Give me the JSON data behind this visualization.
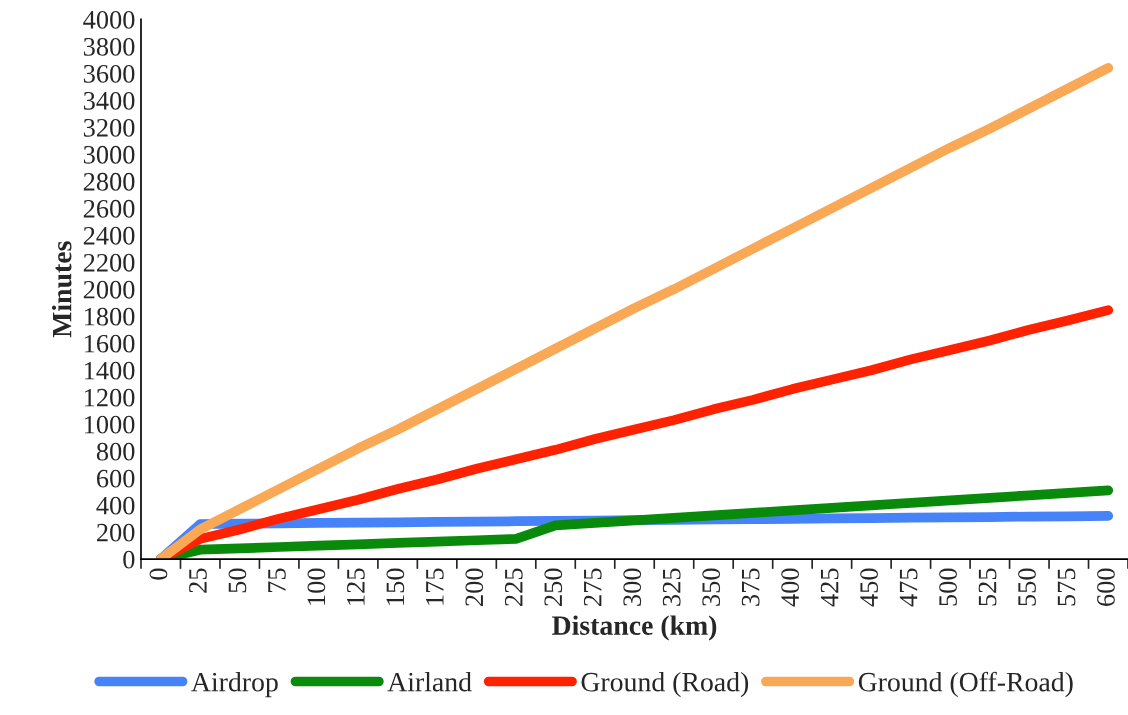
{
  "chart_data": {
    "type": "line",
    "xlabel": "Distance (km)",
    "ylabel": "Minutes",
    "categories": [
      "0",
      "25",
      "50",
      "75",
      "100",
      "125",
      "150",
      "175",
      "200",
      "225",
      "250",
      "275",
      "300",
      "325",
      "350",
      "375",
      "400",
      "425",
      "450",
      "475",
      "500",
      "525",
      "550",
      "575",
      "600"
    ],
    "series": [
      {
        "name": "Airdrop",
        "color": "#4682f8",
        "values": [
          0,
          260,
          263,
          265,
          268,
          270,
          273,
          276,
          278,
          281,
          283,
          286,
          289,
          291,
          294,
          296,
          299,
          302,
          304,
          307,
          309,
          312,
          315,
          317,
          320
        ]
      },
      {
        "name": "Airland",
        "color": "#0a8a0a",
        "values": [
          0,
          70,
          80,
          90,
          100,
          110,
          120,
          130,
          140,
          150,
          250,
          269,
          287,
          306,
          324,
          343,
          361,
          380,
          399,
          417,
          436,
          454,
          473,
          491,
          510
        ]
      },
      {
        "name": "Ground (Road)",
        "color": "#ff2200",
        "values": [
          0,
          150,
          220,
          300,
          370,
          440,
          520,
          590,
          670,
          740,
          810,
          890,
          960,
          1030,
          1110,
          1180,
          1260,
          1330,
          1400,
          1480,
          1550,
          1620,
          1700,
          1770,
          1845
        ]
      },
      {
        "name": "Ground (Off-Road)",
        "color": "#f9a856",
        "values": [
          0,
          220,
          370,
          520,
          670,
          820,
          960,
          1110,
          1260,
          1410,
          1560,
          1710,
          1860,
          2000,
          2150,
          2300,
          2450,
          2600,
          2750,
          2900,
          3050,
          3190,
          3340,
          3490,
          3640
        ]
      }
    ],
    "ylim": [
      0,
      4000
    ],
    "yticks": [
      0,
      200,
      400,
      600,
      800,
      1000,
      1200,
      1400,
      1600,
      1800,
      2000,
      2200,
      2400,
      2600,
      2800,
      3000,
      3200,
      3400,
      3600,
      3800,
      4000
    ],
    "grid": false,
    "legend": "bottom",
    "marker": "none",
    "line_style": "solid"
  }
}
